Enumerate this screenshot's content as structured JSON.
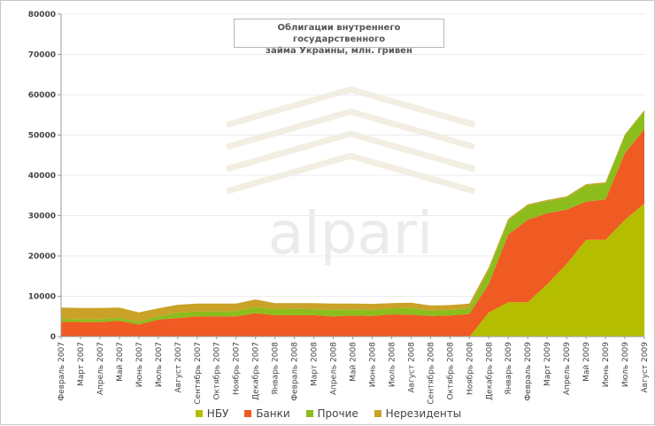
{
  "chart_data": {
    "type": "area",
    "title_line1": "Облигации внутреннего государственного",
    "title_line2": "займа Украины, млн. гривен",
    "watermark": "alpari",
    "ylim": [
      0,
      80000
    ],
    "y_ticks": [
      0,
      10000,
      20000,
      30000,
      40000,
      50000,
      60000,
      70000,
      80000
    ],
    "x_labels": [
      "Февраль 2007",
      "Март 2007",
      "Апрель 2007",
      "Май 2007",
      "Июнь 2007",
      "Июль 2007",
      "Август 2007",
      "Сентябрь 2007",
      "Октябрь 2007",
      "Ноябрь 2007",
      "Декабрь 2007",
      "Январь 2008",
      "Февраль 2008",
      "Март 2008",
      "Апрель 2008",
      "Май 2008",
      "Июнь 2008",
      "Июль 2008",
      "Август 2008",
      "Сентябрь 2008",
      "Октябрь 2008",
      "Ноябрь 2008",
      "Декабрь 2008",
      "Январь 2009",
      "Февраль 2009",
      "Март 2009",
      "Апрель 2009",
      "Май 2009",
      "Июнь 2009",
      "Июль 2009",
      "Август 2009"
    ],
    "stacked": true,
    "series": [
      {
        "name": "НБУ",
        "color": "#b5bd00",
        "values": [
          0,
          0,
          0,
          0,
          0,
          0,
          0,
          0,
          0,
          0,
          0,
          0,
          0,
          0,
          0,
          0,
          0,
          0,
          0,
          0,
          0,
          0,
          6000,
          8500,
          8500,
          13000,
          18000,
          24000,
          24000,
          29000,
          33000
        ]
      },
      {
        "name": "Банки",
        "color": "#f05a23",
        "values": [
          3700,
          3600,
          3600,
          3900,
          3000,
          4200,
          4600,
          5000,
          5000,
          5000,
          5800,
          5300,
          5300,
          5300,
          5000,
          5200,
          5100,
          5500,
          5400,
          5100,
          5200,
          5600,
          7100,
          16800,
          20500,
          17600,
          13500,
          9500,
          10000,
          16500,
          18500
        ]
      },
      {
        "name": "Прочие",
        "color": "#8cbd1c",
        "values": [
          700,
          700,
          700,
          700,
          700,
          800,
          1400,
          1200,
          1200,
          1300,
          1500,
          1500,
          1600,
          1500,
          1600,
          1600,
          1500,
          1500,
          1700,
          1300,
          1400,
          1500,
          3500,
          3500,
          3500,
          3000,
          3000,
          4000,
          4000,
          4500,
          4500
        ]
      },
      {
        "name": "Нерезиденты",
        "color": "#c9a227",
        "values": [
          2800,
          2800,
          2800,
          2600,
          2300,
          2000,
          1900,
          2000,
          2000,
          1900,
          1900,
          1500,
          1400,
          1500,
          1600,
          1400,
          1500,
          1300,
          1300,
          1300,
          1200,
          1100,
          600,
          400,
          300,
          300,
          300,
          300,
          300,
          200,
          200
        ]
      }
    ]
  }
}
